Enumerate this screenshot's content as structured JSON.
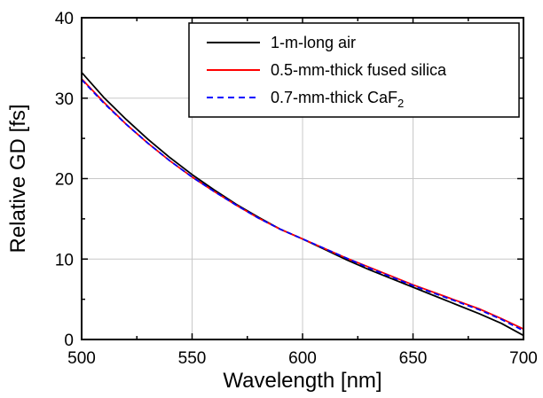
{
  "chart_data": {
    "type": "line",
    "title": "",
    "xlabel": "Wavelength [nm]",
    "ylabel": "Relative GD [fs]",
    "xlim": [
      500,
      700
    ],
    "ylim": [
      0,
      40
    ],
    "xticks": [
      500,
      550,
      600,
      650,
      700
    ],
    "yticks": [
      0,
      10,
      20,
      30,
      40
    ],
    "grid": true,
    "legend_position": "top-right",
    "series": [
      {
        "name": "1-m-long air",
        "color": "#000000",
        "dash": "solid",
        "x": [
          500,
          510,
          520,
          530,
          540,
          550,
          560,
          570,
          580,
          590,
          600,
          610,
          620,
          630,
          640,
          650,
          660,
          670,
          680,
          690,
          700
        ],
        "y": [
          33.2,
          30.1,
          27.4,
          24.9,
          22.6,
          20.5,
          18.6,
          16.8,
          15.2,
          13.7,
          12.5,
          11.2,
          9.9,
          8.7,
          7.6,
          6.5,
          5.4,
          4.3,
          3.2,
          2.0,
          0.5
        ]
      },
      {
        "name": "0.5-mm-thick fused silica",
        "name_prefix": "",
        "color": "#ff0000",
        "dash": "solid",
        "x": [
          500,
          510,
          520,
          530,
          540,
          550,
          560,
          570,
          580,
          590,
          600,
          610,
          620,
          630,
          640,
          650,
          660,
          670,
          680,
          690,
          700
        ],
        "y": [
          32.4,
          29.5,
          26.8,
          24.4,
          22.2,
          20.2,
          18.4,
          16.7,
          15.1,
          13.7,
          12.5,
          11.3,
          10.1,
          9.0,
          7.9,
          6.8,
          5.8,
          4.8,
          3.8,
          2.6,
          1.3
        ]
      },
      {
        "name": "0.7-mm-thick CaF2",
        "name_prefix": "0.7-mm-thick CaF",
        "name_sub": "2",
        "color": "#0000ff",
        "dash": "dashed",
        "x": [
          500,
          510,
          520,
          530,
          540,
          550,
          560,
          570,
          580,
          590,
          600,
          610,
          620,
          630,
          640,
          650,
          660,
          670,
          680,
          690,
          700
        ],
        "y": [
          32.3,
          29.4,
          26.8,
          24.4,
          22.2,
          20.2,
          18.4,
          16.7,
          15.1,
          13.7,
          12.5,
          11.3,
          10.1,
          8.9,
          7.8,
          6.7,
          5.7,
          4.7,
          3.7,
          2.5,
          1.1
        ]
      }
    ]
  }
}
